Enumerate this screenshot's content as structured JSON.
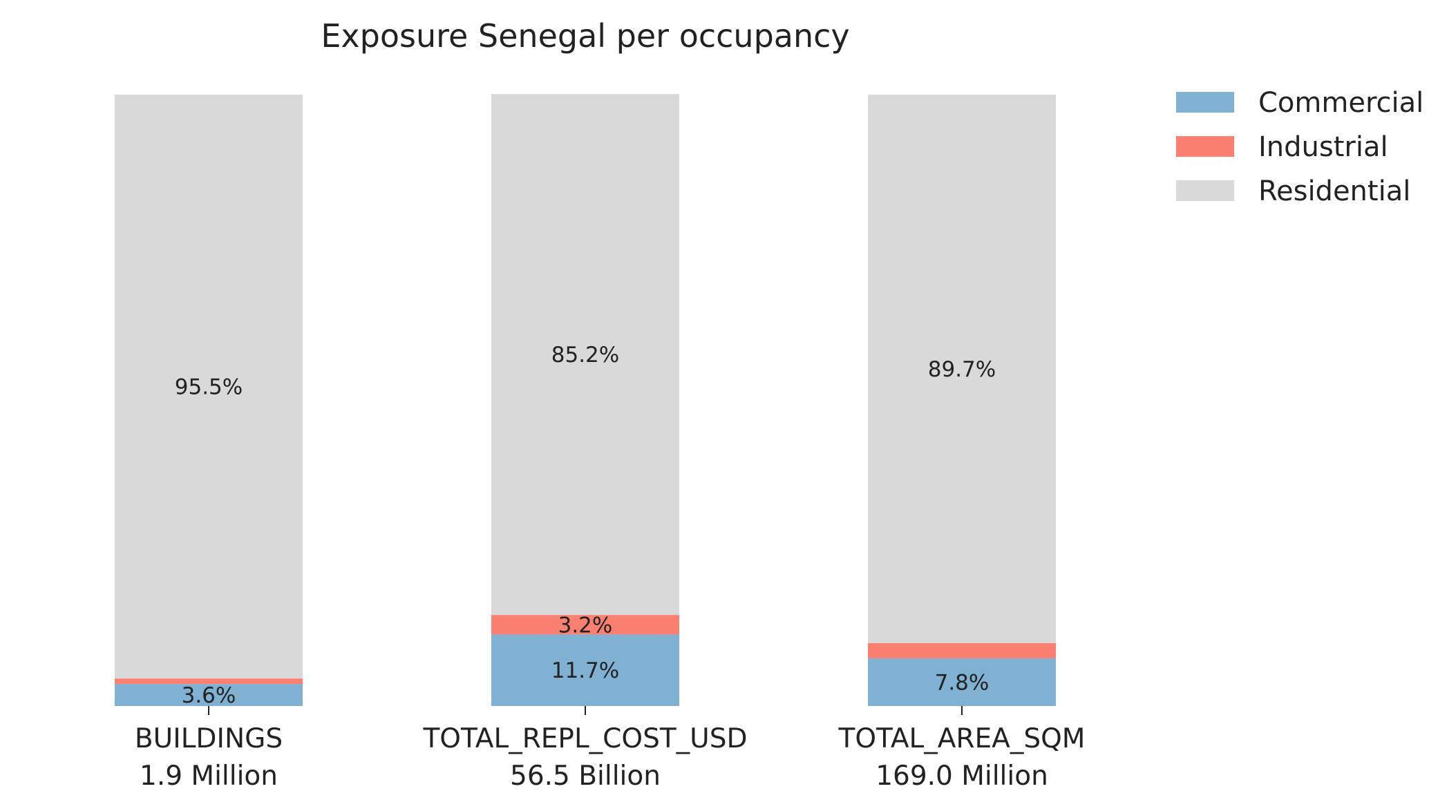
{
  "chart_data": {
    "type": "bar",
    "stacked": true,
    "normalized": true,
    "title": "Exposure Senegal per occupancy",
    "xlabel": "",
    "ylabel": "",
    "ylim": [
      0,
      100
    ],
    "grid": false,
    "legend_position": "top-right",
    "categories": [
      "BUILDINGS",
      "TOTAL_REPL_COST_USD",
      "TOTAL_AREA_SQM"
    ],
    "category_totals": [
      "1.9 Million",
      "56.5 Billion",
      "169.0 Million"
    ],
    "series": [
      {
        "name": "Commercial",
        "color": "#80b1d3",
        "values": [
          3.6,
          11.7,
          7.8
        ],
        "labels": [
          "3.6%",
          "11.7%",
          "7.8%"
        ]
      },
      {
        "name": "Industrial",
        "color": "#fb8072",
        "values": [
          0.9,
          3.2,
          2.5
        ],
        "labels": [
          "",
          "3.2%",
          ""
        ]
      },
      {
        "name": "Residential",
        "color": "#d9d9d9",
        "values": [
          95.5,
          85.2,
          89.7
        ],
        "labels": [
          "95.5%",
          "85.2%",
          "89.7%"
        ]
      }
    ]
  }
}
